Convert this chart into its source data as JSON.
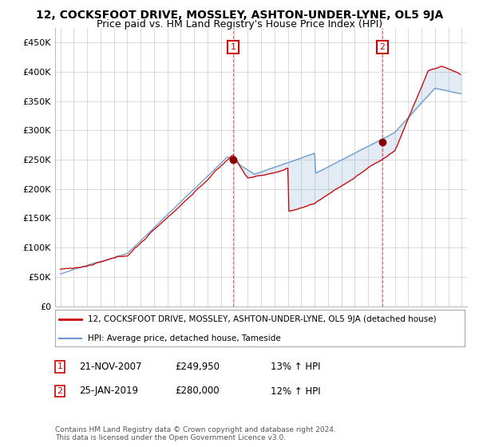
{
  "title": "12, COCKSFOOT DRIVE, MOSSLEY, ASHTON-UNDER-LYNE, OL5 9JA",
  "subtitle": "Price paid vs. HM Land Registry's House Price Index (HPI)",
  "ylabel_ticks": [
    "£0",
    "£50K",
    "£100K",
    "£150K",
    "£200K",
    "£250K",
    "£300K",
    "£350K",
    "£400K",
    "£450K"
  ],
  "ytick_values": [
    0,
    50000,
    100000,
    150000,
    200000,
    250000,
    300000,
    350000,
    400000,
    450000
  ],
  "ylim": [
    0,
    475000
  ],
  "xlim_start": 1994.6,
  "xlim_end": 2025.4,
  "marker1_x": 2007.9,
  "marker1_y": 249950,
  "marker2_x": 2019.07,
  "marker2_y": 280000,
  "marker1_date": "21-NOV-2007",
  "marker1_price": "£249,950",
  "marker1_pct": "13% ↑ HPI",
  "marker2_date": "25-JAN-2019",
  "marker2_price": "£280,000",
  "marker2_pct": "12% ↑ HPI",
  "legend_line1": "12, COCKSFOOT DRIVE, MOSSLEY, ASHTON-UNDER-LYNE, OL5 9JA (detached house)",
  "legend_line2": "HPI: Average price, detached house, Tameside",
  "footnote": "Contains HM Land Registry data © Crown copyright and database right 2024.\nThis data is licensed under the Open Government Licence v3.0.",
  "red_color": "#cc0000",
  "blue_color": "#6699cc",
  "fill_color": "#ddeeff",
  "background_color": "#ffffff",
  "grid_color": "#cccccc",
  "title_fontsize": 10,
  "subtitle_fontsize": 9,
  "axis_fontsize": 8
}
